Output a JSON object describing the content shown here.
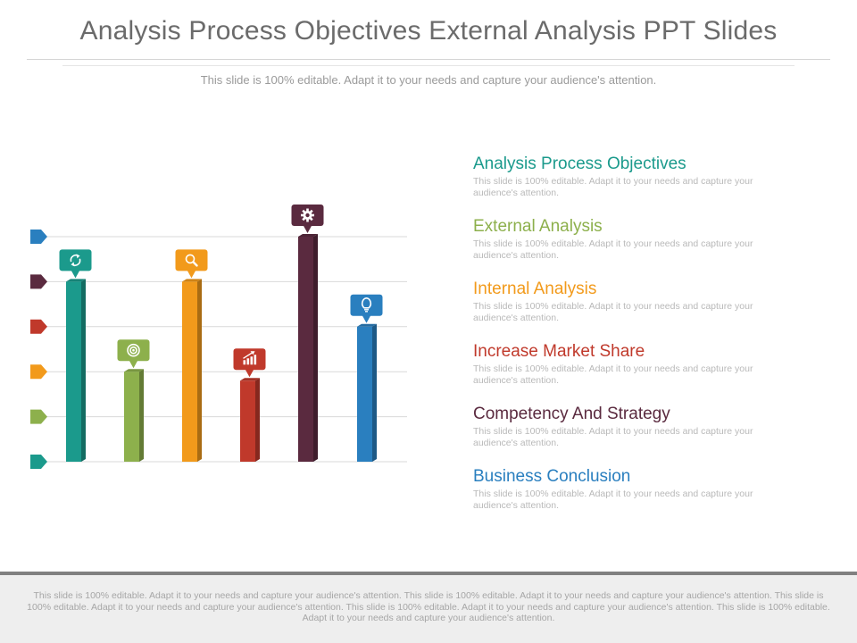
{
  "slide": {
    "title": "Analysis Process Objectives External Analysis PPT Slides",
    "subtitle": "This slide is 100% editable. Adapt it to your needs and capture your audience's attention."
  },
  "legend": [
    {
      "title": "Analysis Process Objectives",
      "desc": "This slide is 100% editable. Adapt it to your needs and capture your audience's attention.",
      "color": "#1b9a8c"
    },
    {
      "title": "External Analysis",
      "desc": "This slide is 100% editable. Adapt it to your needs and capture your audience's attention.",
      "color": "#8db04c"
    },
    {
      "title": "Internal Analysis",
      "desc": "This slide is 100% editable. Adapt it to your needs and capture your audience's attention.",
      "color": "#f29a1b"
    },
    {
      "title": "Increase Market Share",
      "desc": "This slide is 100% editable. Adapt it to your needs and capture your audience's attention.",
      "color": "#c0392b"
    },
    {
      "title": "Competency And Strategy",
      "desc": "This slide is 100% editable. Adapt it to your needs and capture your audience's attention.",
      "color": "#5a2a3f"
    },
    {
      "title": "Business Conclusion",
      "desc": "This slide is 100% editable. Adapt it to your needs and capture your audience's attention.",
      "color": "#2a7fbf"
    }
  ],
  "chart_data": {
    "type": "bar",
    "ylim": [
      0,
      5
    ],
    "values": [
      4,
      2,
      4,
      1.8,
      5,
      3
    ],
    "bar_colors": [
      "#1b9a8c",
      "#8db04c",
      "#f29a1b",
      "#c0392b",
      "#5a2a3f",
      "#2a7fbf"
    ],
    "icons": [
      "recycle-icon",
      "target-icon",
      "magnifier-icon",
      "growth-chart-icon",
      "gear-icon",
      "lightbulb-icon"
    ],
    "marker_colors": [
      "#2a7fbf",
      "#5a2a3f",
      "#c0392b",
      "#f29a1b",
      "#8db04c",
      "#1b9a8c"
    ],
    "grid": true
  },
  "footer": {
    "text": "This slide is 100% editable. Adapt it to your needs and capture your audience's attention. This slide is 100% editable. Adapt it to your needs and capture your audience's attention. This slide is 100% editable. Adapt it to your needs and capture your audience's attention. This slide is 100% editable. Adapt it to your needs and capture your audience's attention. This slide is 100% editable. Adapt it to your needs and capture your audience's attention."
  }
}
